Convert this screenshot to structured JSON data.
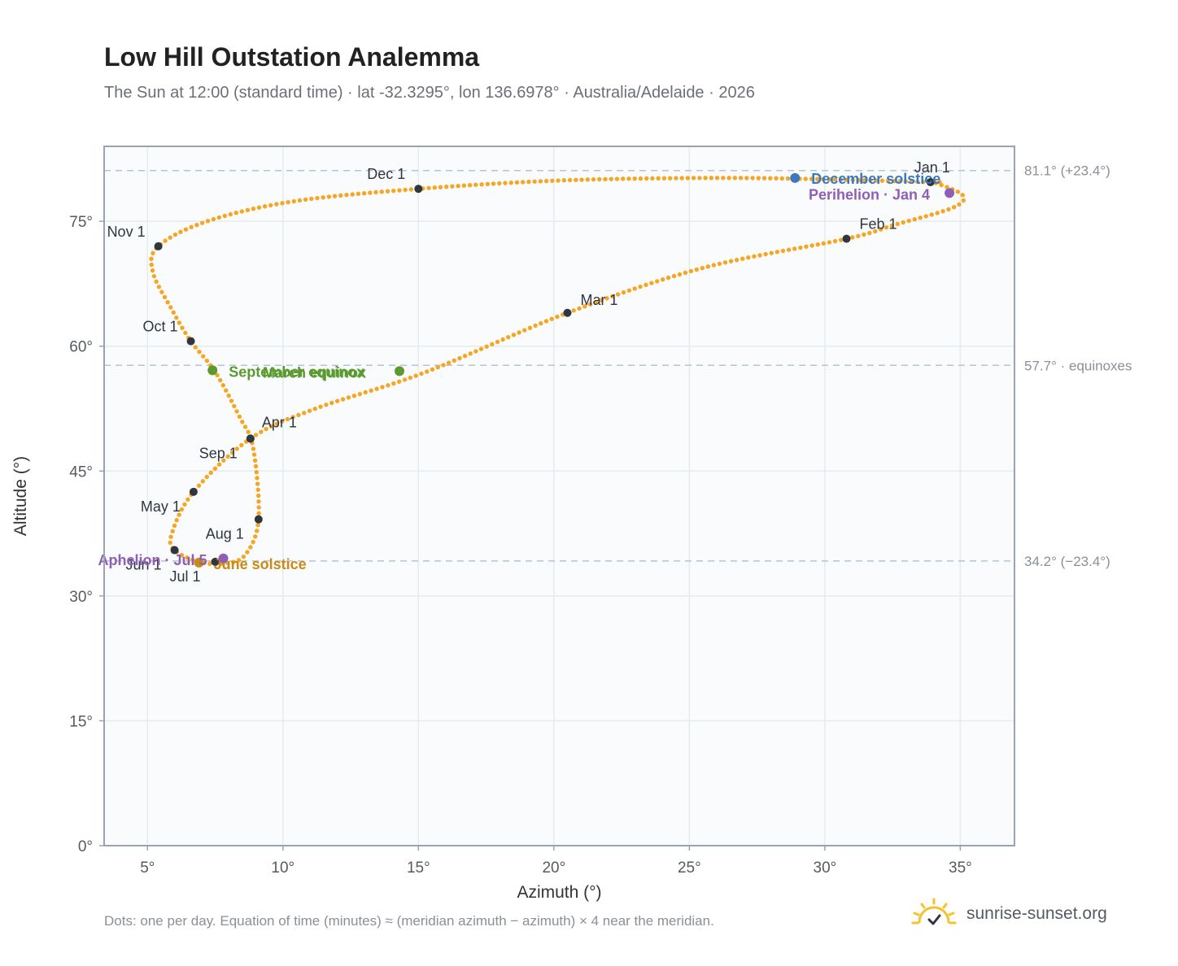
{
  "header": {
    "title": "Low Hill Outstation Analemma",
    "subtitle": "The Sun at 12:00 (standard time) · lat -32.3295°, lon 136.6978° · Australia/Adelaide · 2026"
  },
  "footer": {
    "note": "Dots: one per day. Equation of time (minutes) ≈ (meridian azimuth − azimuth) × 4 near the meridian.",
    "brand": "sunrise-sunset.org",
    "brand_icon": "sun-logo-icon"
  },
  "colors": {
    "curve": "#f5a623",
    "month_dot": "#2f3640",
    "solstice_june": "#c98a16",
    "solstice_december": "#3a78c2",
    "equinox": "#5a9a2e",
    "apsis": "#8e5fb5",
    "reference_line": "#b5c4d0",
    "plot_bg": "#f9fbfd",
    "grid": "#e6ebf0"
  },
  "chart_data": {
    "type": "scatter",
    "xlabel": "Azimuth (°)",
    "ylabel": "Altitude (°)",
    "xlim": [
      3.4,
      37
    ],
    "ylim": [
      0,
      84
    ],
    "grid": true,
    "x_ticks": [
      5,
      10,
      15,
      20,
      25,
      30,
      35
    ],
    "x_tick_labels": [
      "5°",
      "10°",
      "15°",
      "20°",
      "25°",
      "30°",
      "35°"
    ],
    "y_ticks": [
      0,
      15,
      30,
      45,
      60,
      75
    ],
    "y_tick_labels": [
      "0°",
      "15°",
      "30°",
      "45°",
      "60°",
      "75°"
    ],
    "series": [
      {
        "type": "line-dots",
        "points": [
          [
            34.1,
            79.6
          ],
          [
            35.1,
            78.1
          ],
          [
            34.7,
            76.6
          ],
          [
            32.6,
            74.6
          ],
          [
            30.8,
            72.9
          ],
          [
            25.5,
            69.4
          ],
          [
            20.5,
            64.0
          ],
          [
            15.2,
            56.8
          ],
          [
            11.2,
            52.5
          ],
          [
            8.8,
            48.9
          ],
          [
            6.7,
            42.5
          ],
          [
            5.9,
            37.5
          ],
          [
            6.0,
            35.5
          ],
          [
            6.9,
            34.1
          ],
          [
            7.8,
            33.9
          ],
          [
            8.6,
            34.9
          ],
          [
            9.1,
            39.2
          ],
          [
            8.9,
            47.8
          ],
          [
            8.4,
            51.5
          ],
          [
            7.5,
            56.9
          ],
          [
            6.6,
            60.6
          ],
          [
            5.9,
            64.4
          ],
          [
            5.2,
            68.9
          ],
          [
            5.4,
            72.0
          ],
          [
            7.2,
            75.0
          ],
          [
            10.4,
            77.4
          ],
          [
            15.0,
            78.9
          ],
          [
            20.2,
            79.9
          ],
          [
            25.3,
            80.2
          ],
          [
            29.3,
            80.1
          ],
          [
            33.9,
            79.7
          ]
        ]
      }
    ],
    "months": [
      {
        "label": "Jan 1",
        "x": 33.9,
        "y": 79.7
      },
      {
        "label": "Feb 1",
        "x": 30.8,
        "y": 72.9
      },
      {
        "label": "Mar 1",
        "x": 20.5,
        "y": 64.0
      },
      {
        "label": "Apr 1",
        "x": 8.8,
        "y": 48.9
      },
      {
        "label": "May 1",
        "x": 6.7,
        "y": 42.5
      },
      {
        "label": "Jun 1",
        "x": 6.0,
        "y": 35.5
      },
      {
        "label": "Jul 1",
        "x": 7.5,
        "y": 34.1
      },
      {
        "label": "Aug 1",
        "x": 9.1,
        "y": 39.2
      },
      {
        "label": "Sep 1",
        "x": 8.8,
        "y": 48.9
      },
      {
        "label": "Oct 1",
        "x": 6.6,
        "y": 60.6
      },
      {
        "label": "Nov 1",
        "x": 5.4,
        "y": 72.0
      },
      {
        "label": "Dec 1",
        "x": 15.0,
        "y": 78.9
      }
    ],
    "events": [
      {
        "label": "December solstice",
        "x": 28.9,
        "y": 80.2,
        "kind": "solstice_december"
      },
      {
        "label": "Perihelion · Jan 4",
        "x": 34.6,
        "y": 78.4,
        "kind": "apsis"
      },
      {
        "label": "March equinox",
        "x": 14.3,
        "y": 57.0,
        "kind": "equinox"
      },
      {
        "label": "September equinox",
        "x": 7.4,
        "y": 57.1,
        "kind": "equinox"
      },
      {
        "label": "June solstice",
        "x": 6.9,
        "y": 34.0,
        "kind": "solstice_june"
      },
      {
        "label": "Aphelion · Jul 5",
        "x": 7.8,
        "y": 34.5,
        "kind": "apsis"
      }
    ],
    "reference_lines": [
      {
        "y": 81.1,
        "label": "81.1° (+23.4°)"
      },
      {
        "y": 57.7,
        "label": "57.7° · equinoxes"
      },
      {
        "y": 34.2,
        "label": "34.2° (−23.4°)"
      }
    ]
  }
}
